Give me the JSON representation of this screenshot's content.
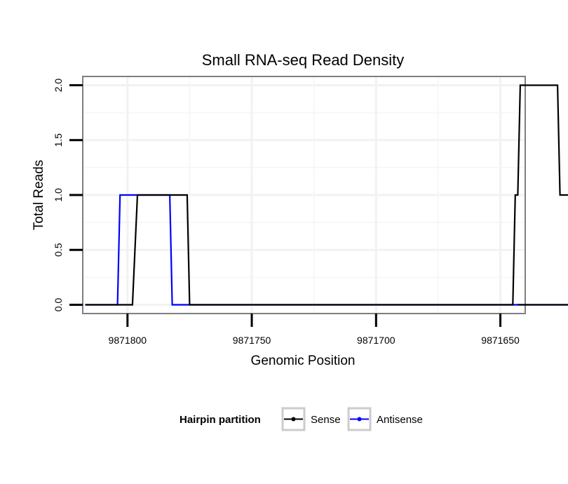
{
  "chart_data": {
    "type": "line",
    "title": "Small RNA-seq Read Density",
    "xlabel": "Genomic Position",
    "ylabel": "Total Reads",
    "xlim": [
      9871818,
      9871640
    ],
    "x_reversed": true,
    "ylim": [
      -0.08,
      2.08
    ],
    "x_ticks": [
      9871800,
      9871750,
      9871700,
      9871650
    ],
    "x_tick_labels": [
      "9871800",
      "9871750",
      "9871700",
      "9871650"
    ],
    "y_ticks": [
      0,
      0.5,
      1,
      1.5,
      2
    ],
    "y_tick_labels": [
      "0.0",
      "0.5",
      "1.0",
      "1.5",
      "2.0"
    ],
    "grid": true,
    "legend": {
      "title": "Hairpin partition",
      "position": "bottom",
      "entries": [
        "Sense",
        "Antisense"
      ]
    },
    "series": [
      {
        "name": "Sense",
        "color": "#000000",
        "x": [
          9871817,
          9871798,
          9871796,
          9871776,
          9871775,
          9871645,
          9871644,
          9871643,
          9871642,
          9871627,
          9871626,
          9871621,
          9871620,
          9871643,
          9871640
        ],
        "y": [
          0,
          0,
          1,
          1,
          0,
          0,
          1,
          1,
          2,
          2,
          1,
          1,
          0,
          0,
          0
        ]
      },
      {
        "name": "Antisense",
        "color": "#0000ff",
        "x": [
          9871817,
          9871804,
          9871803,
          9871783,
          9871782,
          9871620
        ],
        "y": [
          0,
          0,
          1,
          1,
          0,
          0
        ]
      }
    ]
  }
}
